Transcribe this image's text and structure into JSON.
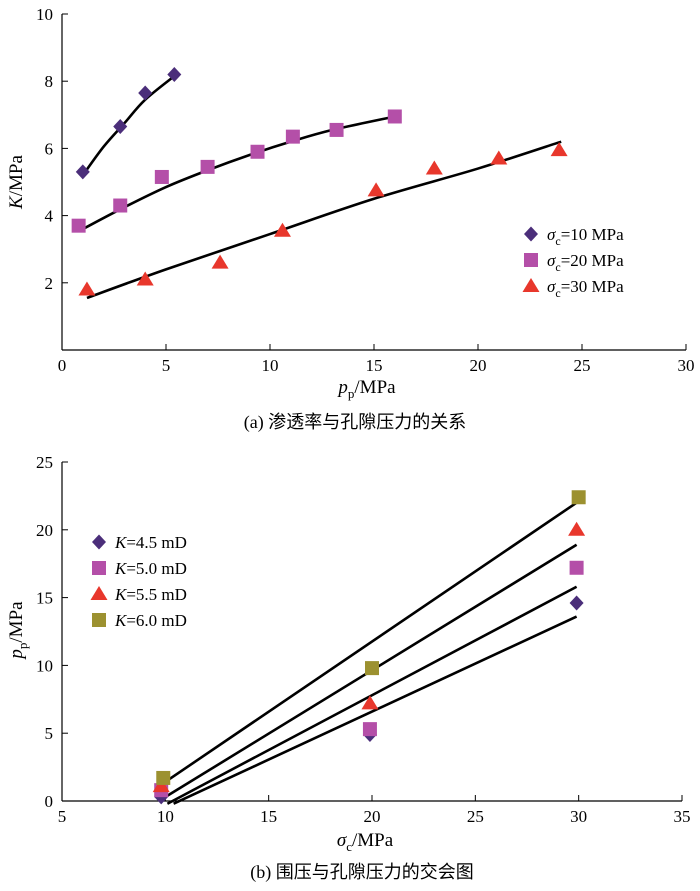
{
  "figure": {
    "caption_a": "(a) 渗透率与孔隙压力的关系",
    "caption_b": "(b) 围压与孔隙压力的交会图"
  },
  "chart_data": [
    {
      "type": "scatter",
      "panel": "a",
      "xlabel": "p_p/MPa",
      "ylabel": "K/MPa",
      "xlim": [
        0,
        30
      ],
      "ylim": [
        0,
        10
      ],
      "xticks": [
        0,
        5,
        10,
        15,
        20,
        25,
        30
      ],
      "yticks": [
        2,
        4,
        6,
        8,
        10
      ],
      "legend_position": "right-middle",
      "series": [
        {
          "name": "σc=10 MPa",
          "marker": "diamond",
          "color": "#4b2e7a",
          "points": [
            [
              1.0,
              5.3
            ],
            [
              2.8,
              6.65
            ],
            [
              4.0,
              7.65
            ],
            [
              5.4,
              8.2
            ]
          ],
          "fit": [
            [
              1.0,
              5.2
            ],
            [
              2.0,
              6.05
            ],
            [
              3.0,
              6.75
            ],
            [
              4.0,
              7.45
            ],
            [
              5.5,
              8.2
            ]
          ]
        },
        {
          "name": "σc=20 MPa",
          "marker": "square",
          "color": "#b44fa8",
          "points": [
            [
              0.8,
              3.7
            ],
            [
              2.8,
              4.3
            ],
            [
              4.8,
              5.15
            ],
            [
              7.0,
              5.45
            ],
            [
              9.4,
              5.9
            ],
            [
              11.1,
              6.35
            ],
            [
              13.2,
              6.55
            ],
            [
              16.0,
              6.95
            ]
          ],
          "fit": [
            [
              1.0,
              3.6
            ],
            [
              3.0,
              4.25
            ],
            [
              5.0,
              4.85
            ],
            [
              7.0,
              5.35
            ],
            [
              9.0,
              5.8
            ],
            [
              11.0,
              6.2
            ],
            [
              13.0,
              6.55
            ],
            [
              16.0,
              6.95
            ]
          ]
        },
        {
          "name": "σc=30 MPa",
          "marker": "triangle",
          "color": "#e8372c",
          "points": [
            [
              1.2,
              1.8
            ],
            [
              4.0,
              2.1
            ],
            [
              7.6,
              2.6
            ],
            [
              10.6,
              3.55
            ],
            [
              15.1,
              4.75
            ],
            [
              17.9,
              5.4
            ],
            [
              21.0,
              5.7
            ],
            [
              23.9,
              5.95
            ]
          ],
          "fit": [
            [
              1.2,
              1.55
            ],
            [
              5.0,
              2.4
            ],
            [
              10.0,
              3.45
            ],
            [
              15.0,
              4.5
            ],
            [
              20.0,
              5.4
            ],
            [
              24.0,
              6.2
            ]
          ]
        }
      ]
    },
    {
      "type": "scatter",
      "panel": "b",
      "xlabel": "σc/MPa",
      "ylabel": "p_p/MPa",
      "xlim": [
        5,
        35
      ],
      "ylim": [
        0,
        25
      ],
      "xticks": [
        5,
        10,
        15,
        20,
        25,
        30,
        35
      ],
      "yticks": [
        0,
        5,
        10,
        15,
        20,
        25
      ],
      "legend_position": "top-left",
      "series": [
        {
          "name": "K=4.5 mD",
          "marker": "diamond",
          "color": "#4b2e7a",
          "points": [
            [
              9.8,
              0.3
            ],
            [
              19.9,
              4.9
            ],
            [
              29.9,
              14.6
            ]
          ],
          "fit": [
            [
              10.4,
              -0.2
            ],
            [
              29.9,
              13.6
            ]
          ]
        },
        {
          "name": "K=5.0 mD",
          "marker": "square",
          "color": "#b44fa8",
          "points": [
            [
              9.8,
              0.8
            ],
            [
              19.9,
              5.3
            ],
            [
              29.9,
              17.2
            ]
          ],
          "fit": [
            [
              10.1,
              -0.2
            ],
            [
              29.9,
              15.8
            ]
          ]
        },
        {
          "name": "K=5.5 mD",
          "marker": "triangle",
          "color": "#e8372c",
          "points": [
            [
              9.8,
              1.1
            ],
            [
              19.9,
              7.2
            ],
            [
              29.9,
              20.0
            ]
          ],
          "fit": [
            [
              9.9,
              0.2
            ],
            [
              29.9,
              18.9
            ]
          ]
        },
        {
          "name": "K=6.0 mD",
          "marker": "square",
          "color": "#9c9130",
          "points": [
            [
              9.9,
              1.7
            ],
            [
              20.0,
              9.8
            ],
            [
              30.0,
              22.4
            ]
          ],
          "fit": [
            [
              9.7,
              1.1
            ],
            [
              29.9,
              22.0
            ]
          ]
        }
      ]
    }
  ]
}
